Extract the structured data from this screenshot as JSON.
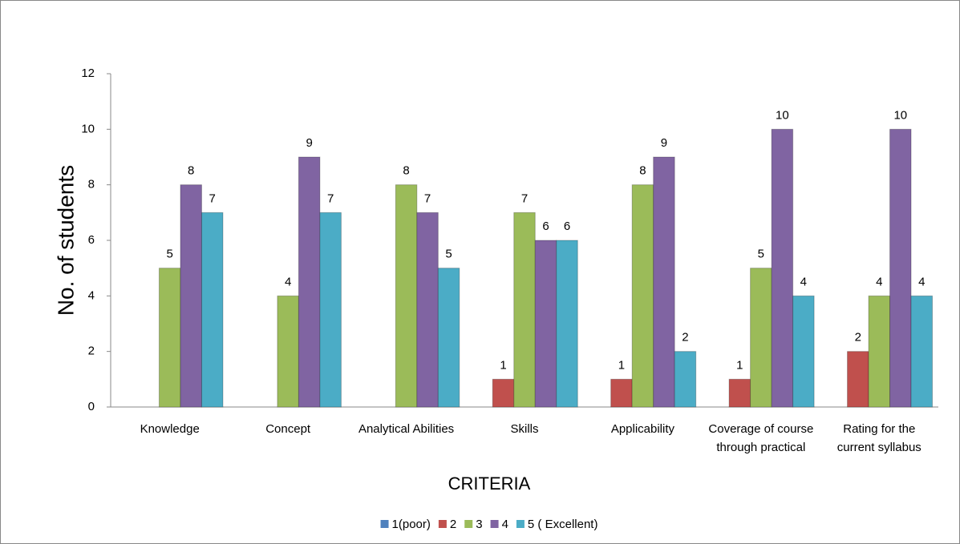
{
  "chart_data": {
    "type": "bar",
    "x_label": "CRITERIA",
    "y_label": "No. of students",
    "categories": [
      "Knowledge",
      "Concept",
      "Analytical Abilities",
      "Skills",
      "Applicability",
      "Coverage of course through practical",
      "Rating for the current syllabus"
    ],
    "series": [
      {
        "name": "1(poor)",
        "color": "#4f81bd",
        "values": [
          null,
          null,
          null,
          null,
          null,
          null,
          null
        ]
      },
      {
        "name": "2",
        "color": "#c0504d",
        "values": [
          null,
          null,
          null,
          1,
          1,
          1,
          2
        ]
      },
      {
        "name": "3",
        "color": "#9bbb59",
        "values": [
          5,
          4,
          8,
          7,
          8,
          5,
          4
        ]
      },
      {
        "name": "4",
        "color": "#8064a2",
        "values": [
          8,
          9,
          7,
          6,
          9,
          10,
          10
        ]
      },
      {
        "name": "5 ( Excellent)",
        "color": "#4bacc6",
        "values": [
          7,
          7,
          5,
          6,
          2,
          4,
          4
        ]
      }
    ],
    "ylim": [
      0,
      12
    ],
    "yticks": [
      0,
      2,
      4,
      6,
      8,
      10,
      12
    ],
    "grid": false,
    "legend": "bottom"
  }
}
